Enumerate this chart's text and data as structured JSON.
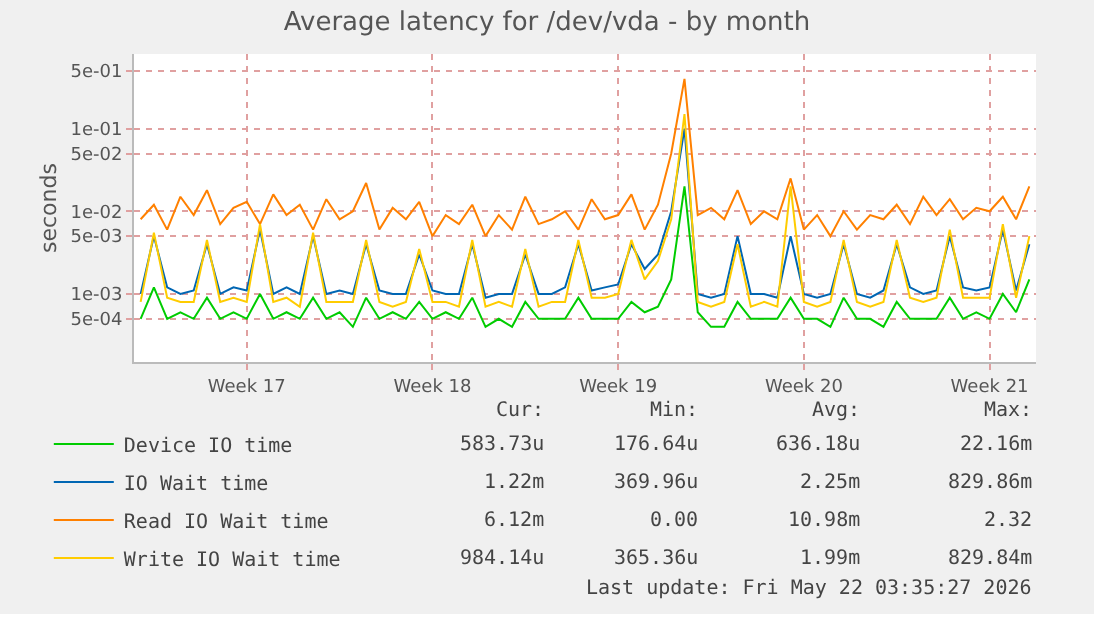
{
  "chart_data": {
    "type": "line",
    "title": "Average latency for /dev/vda - by month",
    "ylabel": "seconds",
    "log": "y",
    "grid": true,
    "legend": "bottom",
    "marker": "none",
    "line_style": "solid",
    "categories": [
      null,
      null,
      null,
      null,
      null,
      null,
      null,
      null,
      "Week 17",
      null,
      null,
      null,
      null,
      null,
      null,
      null,
      null,
      null,
      null,
      null,
      null,
      null,
      "Week 18",
      null,
      null,
      null,
      null,
      null,
      null,
      null,
      null,
      null,
      null,
      null,
      null,
      null,
      "Week 19",
      null,
      null,
      null,
      null,
      null,
      null,
      null,
      null,
      null,
      null,
      null,
      null,
      null,
      "Week 20",
      null,
      null,
      null,
      null,
      null,
      null,
      null,
      null,
      null,
      null,
      null,
      null,
      null,
      "Week 21",
      null,
      null,
      null
    ],
    "ylim": [
      0.00015,
      0.8
    ],
    "yticks": [
      {
        "value": 0.0005,
        "label": "5e-04"
      },
      {
        "value": 0.001,
        "label": "1e-03"
      },
      {
        "value": 0.005,
        "label": "5e-03"
      },
      {
        "value": 0.01,
        "label": "1e-02"
      },
      {
        "value": 0.05,
        "label": "5e-02"
      },
      {
        "value": 0.1,
        "label": "1e-01"
      },
      {
        "value": 0.5,
        "label": "5e-01"
      }
    ],
    "series": [
      {
        "name": "Device IO time",
        "color": "#00cc00",
        "values": [
          0.0005,
          0.0012,
          0.0005,
          0.0006,
          0.0005,
          0.0009,
          0.0005,
          0.0006,
          0.0005,
          0.001,
          0.0005,
          0.0006,
          0.0005,
          0.0009,
          0.0005,
          0.0006,
          0.0004,
          0.0009,
          0.0005,
          0.0006,
          0.0005,
          0.0008,
          0.0005,
          0.0006,
          0.0005,
          0.0009,
          0.0004,
          0.0005,
          0.0004,
          0.0008,
          0.0005,
          0.0005,
          0.0005,
          0.0009,
          0.0005,
          0.0005,
          0.0005,
          0.0008,
          0.0006,
          0.0007,
          0.0015,
          0.02,
          0.0006,
          0.0004,
          0.0004,
          0.0008,
          0.0005,
          0.0005,
          0.0005,
          0.0009,
          0.0005,
          0.0005,
          0.0004,
          0.0009,
          0.0005,
          0.0005,
          0.0004,
          0.0008,
          0.0005,
          0.0005,
          0.0005,
          0.0009,
          0.0005,
          0.0006,
          0.0005,
          0.001,
          0.0006,
          0.0015
        ]
      },
      {
        "name": "IO Wait time",
        "color": "#0066b3",
        "values": [
          0.001,
          0.005,
          0.0012,
          0.001,
          0.0011,
          0.004,
          0.001,
          0.0012,
          0.0011,
          0.006,
          0.001,
          0.0012,
          0.001,
          0.005,
          0.001,
          0.0011,
          0.001,
          0.004,
          0.0011,
          0.001,
          0.001,
          0.003,
          0.0011,
          0.001,
          0.001,
          0.004,
          0.0009,
          0.001,
          0.001,
          0.003,
          0.001,
          0.001,
          0.0012,
          0.004,
          0.0011,
          0.0012,
          0.0013,
          0.004,
          0.002,
          0.003,
          0.01,
          0.1,
          0.001,
          0.0009,
          0.001,
          0.005,
          0.001,
          0.001,
          0.0009,
          0.005,
          0.001,
          0.0009,
          0.001,
          0.004,
          0.001,
          0.0009,
          0.0011,
          0.004,
          0.0012,
          0.001,
          0.0011,
          0.005,
          0.0012,
          0.0011,
          0.0012,
          0.006,
          0.0011,
          0.004
        ]
      },
      {
        "name": "Read IO Wait time",
        "color": "#ff8000",
        "values": [
          0.008,
          0.012,
          0.006,
          0.015,
          0.009,
          0.018,
          0.007,
          0.011,
          0.013,
          0.007,
          0.016,
          0.009,
          0.012,
          0.006,
          0.014,
          0.008,
          0.01,
          0.022,
          0.006,
          0.011,
          0.008,
          0.013,
          0.005,
          0.009,
          0.007,
          0.012,
          0.005,
          0.009,
          0.006,
          0.015,
          0.007,
          0.008,
          0.01,
          0.006,
          0.014,
          0.008,
          0.009,
          0.016,
          0.006,
          0.012,
          0.05,
          0.4,
          0.009,
          0.011,
          0.008,
          0.018,
          0.007,
          0.01,
          0.008,
          0.025,
          0.006,
          0.009,
          0.005,
          0.01,
          0.006,
          0.009,
          0.008,
          0.012,
          0.007,
          0.015,
          0.009,
          0.014,
          0.008,
          0.011,
          0.01,
          0.015,
          0.008,
          0.02
        ]
      },
      {
        "name": "Write IO Wait time",
        "color": "#ffcc00",
        "values": [
          0.0008,
          0.0055,
          0.0009,
          0.0008,
          0.0008,
          0.0045,
          0.0008,
          0.0009,
          0.0008,
          0.007,
          0.0008,
          0.0009,
          0.0007,
          0.0055,
          0.0008,
          0.0008,
          0.0008,
          0.0045,
          0.0008,
          0.0007,
          0.0008,
          0.0035,
          0.0008,
          0.0008,
          0.0007,
          0.0045,
          0.0007,
          0.0008,
          0.0007,
          0.0035,
          0.0007,
          0.0008,
          0.0008,
          0.0045,
          0.0009,
          0.0009,
          0.001,
          0.0045,
          0.0015,
          0.0025,
          0.008,
          0.15,
          0.0008,
          0.0007,
          0.0008,
          0.004,
          0.0007,
          0.0008,
          0.0007,
          0.02,
          0.0008,
          0.0007,
          0.0008,
          0.0045,
          0.0008,
          0.0007,
          0.0008,
          0.0045,
          0.0009,
          0.0008,
          0.0009,
          0.006,
          0.0009,
          0.0009,
          0.0009,
          0.007,
          0.0009,
          0.005
        ]
      }
    ],
    "annotations": [
      "Cur:",
      "Min:",
      "Avg:",
      "Max:",
      "583.73u",
      "176.64u",
      "636.18u",
      "22.16m",
      "1.22m",
      "369.96u",
      "2.25m",
      "829.86m",
      "6.12m",
      "0.00",
      "10.98m",
      "2.32",
      "984.14u",
      "365.36u",
      "1.99m",
      "829.84m",
      "Last update: Fri May 22 03:35:27 2026"
    ]
  }
}
